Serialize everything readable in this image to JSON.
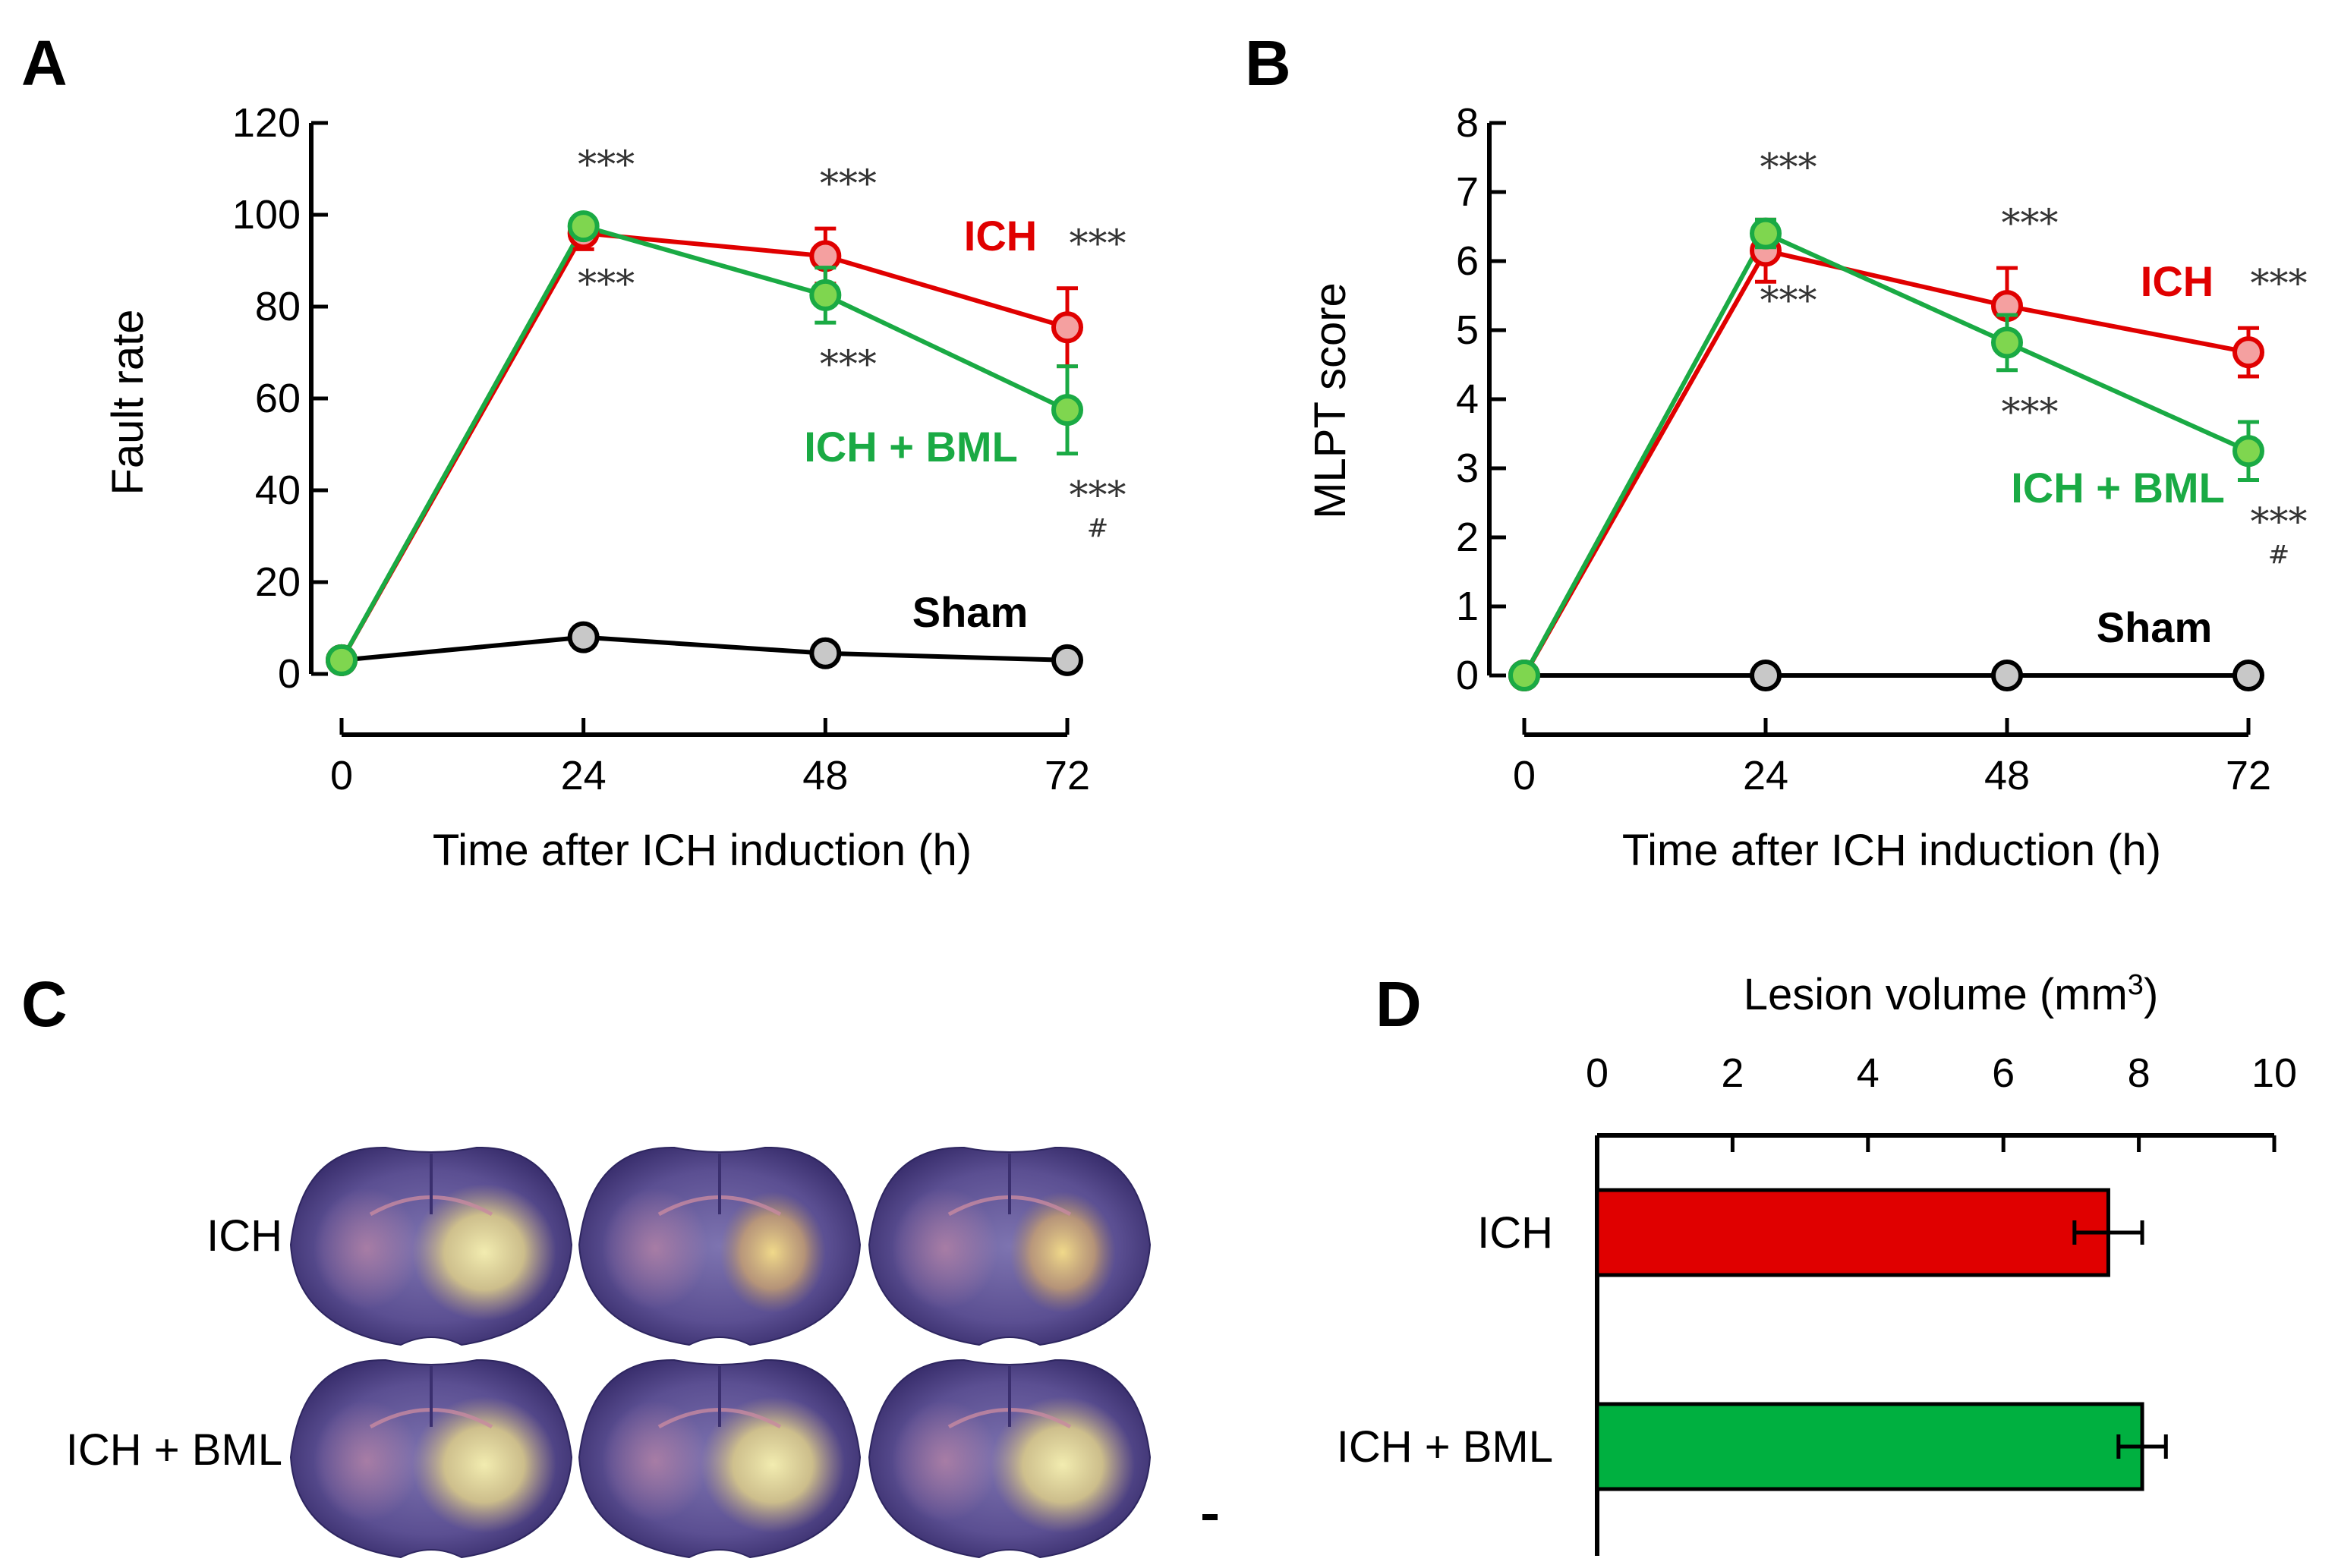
{
  "panels": {
    "A": "A",
    "B": "B",
    "C": "C",
    "D": "D"
  },
  "colors": {
    "ich": "#e00000",
    "ich_bml": "#1aaa44",
    "sham": "#000000",
    "sham_fill": "#c8c8c8",
    "ich_fill": "#f4a0a0",
    "ich_bml_fill": "#7fd64f"
  },
  "chart_data": [
    {
      "id": "A",
      "type": "line",
      "ylabel": "Fault rate",
      "xlabel": "Time after ICH induction (h)",
      "x": [
        0,
        24,
        48,
        72
      ],
      "xticks": [
        "0",
        "24",
        "48",
        "72"
      ],
      "ylim": [
        0,
        120
      ],
      "yticks": [
        "0",
        "20",
        "40",
        "60",
        "80",
        "100",
        "120"
      ],
      "series": [
        {
          "name": "Sham",
          "key": "sham",
          "values": [
            3,
            8,
            4.5,
            3
          ],
          "err": [
            0.5,
            1.5,
            1,
            0.5
          ]
        },
        {
          "name": "ICH",
          "key": "ich",
          "values": [
            3,
            96,
            91,
            75.5
          ],
          "err": [
            0.5,
            3.5,
            6,
            8.5
          ]
        },
        {
          "name": "ICH + BML",
          "key": "ich_bml",
          "values": [
            3,
            97.5,
            82.5,
            57.5
          ],
          "err": [
            0.5,
            1,
            6,
            9.5
          ]
        }
      ],
      "annotations": [
        {
          "text": "***",
          "x": 24,
          "pos": "above-ich"
        },
        {
          "text": "***",
          "x": 24,
          "pos": "below-bml"
        },
        {
          "text": "***",
          "x": 48,
          "pos": "above-ich"
        },
        {
          "text": "***",
          "x": 48,
          "pos": "below-bml"
        },
        {
          "text": "***",
          "x": 72,
          "pos": "above-ich"
        },
        {
          "text": "***",
          "x": 72,
          "pos": "below-bml"
        },
        {
          "text": "#",
          "x": 72,
          "pos": "below-bml-hash"
        }
      ]
    },
    {
      "id": "B",
      "type": "line",
      "ylabel": "MLPT score",
      "xlabel": "Time after ICH induction (h)",
      "x": [
        0,
        24,
        48,
        72
      ],
      "xticks": [
        "0",
        "24",
        "48",
        "72"
      ],
      "ylim": [
        0,
        8
      ],
      "yticks": [
        "0",
        "1",
        "2",
        "3",
        "4",
        "5",
        "6",
        "7",
        "8"
      ],
      "series": [
        {
          "name": "Sham",
          "key": "sham",
          "values": [
            0,
            0,
            0,
            0
          ],
          "err": [
            0,
            0,
            0,
            0
          ]
        },
        {
          "name": "ICH",
          "key": "ich",
          "values": [
            0,
            6.15,
            5.35,
            4.68
          ],
          "err": [
            0,
            0.45,
            0.55,
            0.35
          ]
        },
        {
          "name": "ICH + BML",
          "key": "ich_bml",
          "values": [
            0,
            6.4,
            4.82,
            3.25
          ],
          "err": [
            0,
            0.2,
            0.4,
            0.42
          ]
        }
      ],
      "annotations": [
        {
          "text": "***",
          "x": 24,
          "pos": "above-ich"
        },
        {
          "text": "***",
          "x": 24,
          "pos": "below-bml"
        },
        {
          "text": "***",
          "x": 48,
          "pos": "above-ich"
        },
        {
          "text": "***",
          "x": 48,
          "pos": "below-bml"
        },
        {
          "text": "***",
          "x": 72,
          "pos": "above-ich"
        },
        {
          "text": "***",
          "x": 72,
          "pos": "below-bml"
        },
        {
          "text": "#",
          "x": 72,
          "pos": "below-bml-hash"
        }
      ]
    },
    {
      "id": "D",
      "type": "bar",
      "orientation": "horizontal",
      "xlabel": "Lesion volume (mm",
      "xlabel_sup": "3",
      "xlabel_end": ")",
      "xlim": [
        0,
        10
      ],
      "xticks": [
        "0",
        "2",
        "4",
        "6",
        "8",
        "10"
      ],
      "categories": [
        "ICH",
        "ICH + BML"
      ],
      "values": [
        7.55,
        8.05
      ],
      "err": [
        0.5,
        0.35
      ],
      "keys": [
        "ich",
        "ich_bml"
      ]
    }
  ],
  "panel_c": {
    "rows": [
      "ICH",
      "ICH + BML"
    ],
    "images_per_row": 3
  }
}
